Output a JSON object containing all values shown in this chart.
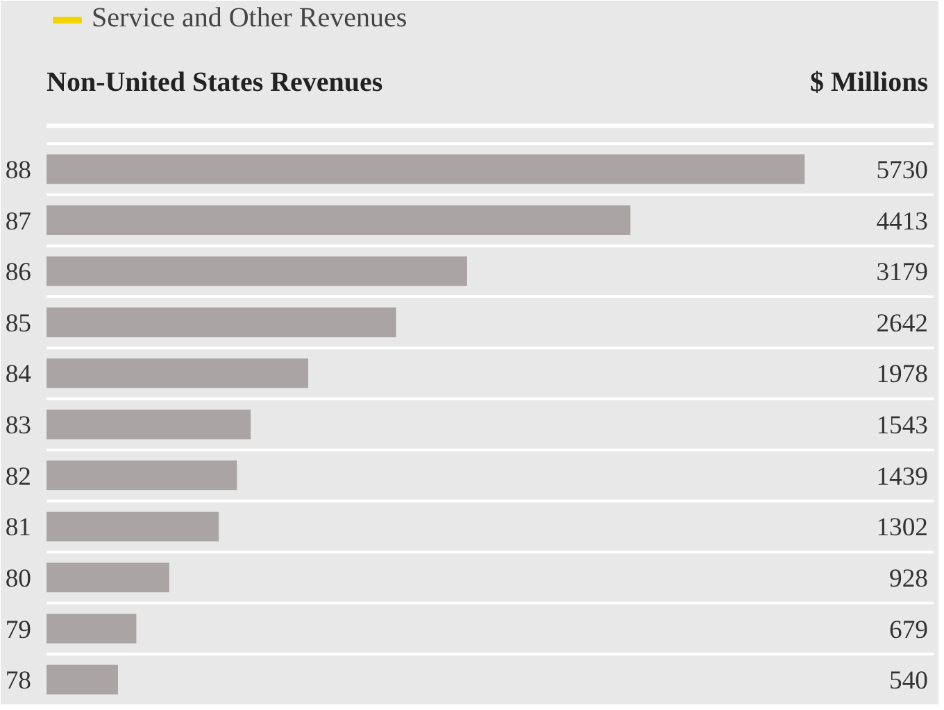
{
  "chart_data": {
    "type": "bar",
    "orientation": "horizontal",
    "title": "Non-United States Revenues",
    "xlabel": "$ Millions",
    "categories": [
      "88",
      "87",
      "86",
      "85",
      "84",
      "83",
      "82",
      "81",
      "80",
      "79",
      "78"
    ],
    "series": [
      {
        "name": "Service and Other Revenues",
        "color": "#f2d500",
        "values": [
          null,
          null,
          null,
          null,
          null,
          null,
          null,
          null,
          null,
          null,
          null
        ]
      },
      {
        "color": "#aba4a4",
        "values": [
          5730,
          4413,
          3179,
          2642,
          1978,
          1543,
          1439,
          1302,
          928,
          679,
          540
        ]
      }
    ],
    "data_labels": true,
    "grid": "y",
    "legend": "top left",
    "tick_labels": "y"
  }
}
